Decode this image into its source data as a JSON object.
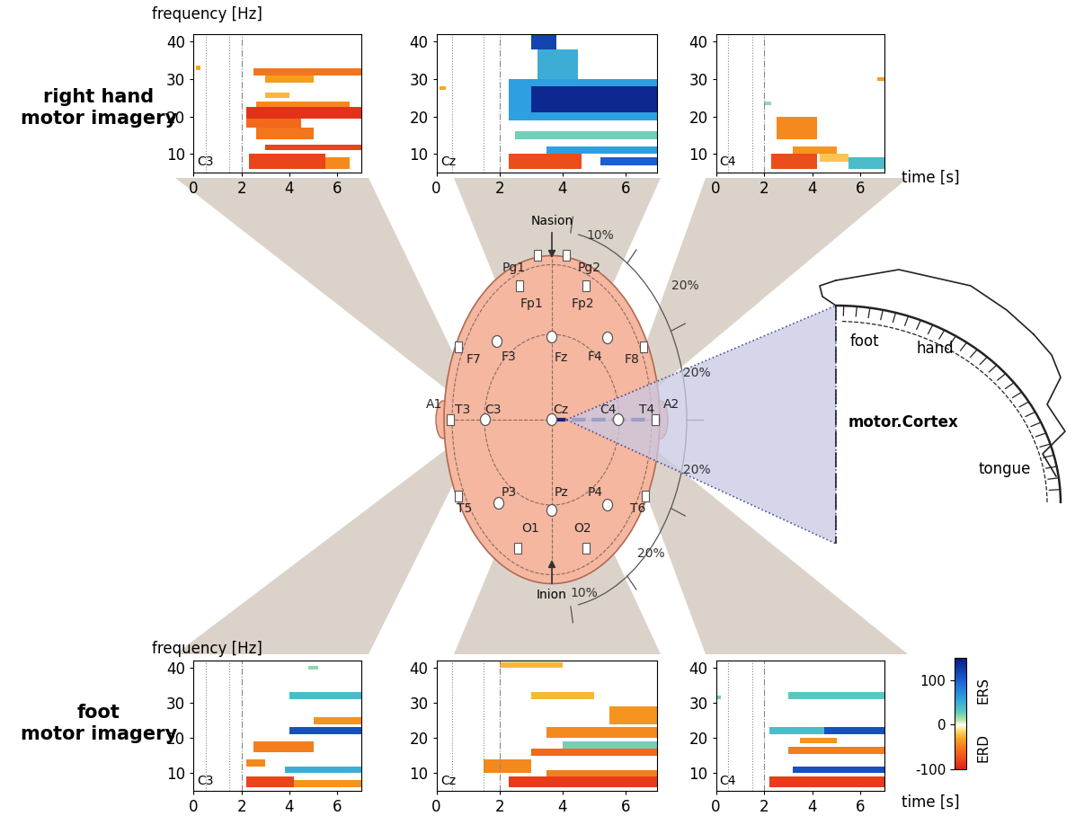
{
  "chart_data": {
    "type": "heatmap",
    "x_label": "time [s]",
    "y_label": "frequency [Hz]",
    "xlim": [
      0,
      7
    ],
    "ylim": [
      5,
      42
    ],
    "xticks": [
      0,
      2,
      4,
      6
    ],
    "yticks": [
      10,
      20,
      30,
      40
    ],
    "event_lines": [
      0.5,
      1.5,
      2
    ],
    "colorbar": {
      "range": [
        -100,
        150
      ],
      "ticks": [
        -100,
        0,
        100
      ],
      "top_label": "ERS",
      "bottom_label": "ERD"
    },
    "rows": [
      {
        "label": "right hand\nmotor imagery",
        "panels": [
          {
            "channel": "C3",
            "cells": [
              {
                "t": [
                  2.2,
                  7
                ],
                "f": [
                  19.5,
                  22.5
                ],
                "value": -90
              },
              {
                "t": [
                  2.2,
                  4.5
                ],
                "f": [
                  17,
                  19.5
                ],
                "value": -60
              },
              {
                "t": [
                  2.6,
                  6.5
                ],
                "f": [
                  22.5,
                  24
                ],
                "value": -45
              },
              {
                "t": [
                  2.6,
                  5.0
                ],
                "f": [
                  14,
                  17
                ],
                "value": -55
              },
              {
                "t": [
                  3,
                  7
                ],
                "f": [
                  11,
                  12.5
                ],
                "value": -80
              },
              {
                "t": [
                  2.3,
                  5.5
                ],
                "f": [
                  6,
                  10
                ],
                "value": -80
              },
              {
                "t": [
                  5.5,
                  6.5
                ],
                "f": [
                  6,
                  9
                ],
                "value": -45
              },
              {
                "t": [
                  2.5,
                  7
                ],
                "f": [
                  31,
                  33
                ],
                "value": -55
              },
              {
                "t": [
                  3,
                  5
                ],
                "f": [
                  29,
                  31
                ],
                "value": -35
              },
              {
                "t": [
                  0.1,
                  0.3
                ],
                "f": [
                  32.5,
                  33.5
                ],
                "value": -30
              },
              {
                "t": [
                  3,
                  4
                ],
                "f": [
                  25,
                  26.5
                ],
                "value": -25
              }
            ]
          },
          {
            "channel": "Cz",
            "cells": [
              {
                "t": [
                  2.3,
                  7
                ],
                "f": [
                  19,
                  30
                ],
                "value": 60
              },
              {
                "t": [
                  3,
                  7
                ],
                "f": [
                  21,
                  28
                ],
                "value": 140
              },
              {
                "t": [
                  3.2,
                  4.5
                ],
                "f": [
                  30,
                  38
                ],
                "value": 50
              },
              {
                "t": [
                  3,
                  3.8
                ],
                "f": [
                  38,
                  42
                ],
                "value": 120
              },
              {
                "t": [
                  2.3,
                  4.6
                ],
                "f": [
                  6,
                  10
                ],
                "value": -75
              },
              {
                "t": [
                  3.5,
                  7
                ],
                "f": [
                  10,
                  12
                ],
                "value": 60
              },
              {
                "t": [
                  5.2,
                  7
                ],
                "f": [
                  7,
                  9
                ],
                "value": 100
              },
              {
                "t": [
                  2.5,
                  7
                ],
                "f": [
                  14,
                  16
                ],
                "value": 25
              },
              {
                "t": [
                  0.1,
                  0.3
                ],
                "f": [
                  27,
                  28
                ],
                "value": -30
              }
            ]
          },
          {
            "channel": "C4",
            "cells": [
              {
                "t": [
                  2.5,
                  4.2
                ],
                "f": [
                  14,
                  20
                ],
                "value": -45
              },
              {
                "t": [
                  2.3,
                  4.2
                ],
                "f": [
                  6,
                  10
                ],
                "value": -75
              },
              {
                "t": [
                  3.2,
                  5
                ],
                "f": [
                  10,
                  12
                ],
                "value": -40
              },
              {
                "t": [
                  4.3,
                  5.5
                ],
                "f": [
                  8,
                  10
                ],
                "value": -20
              },
              {
                "t": [
                  5.5,
                  7
                ],
                "f": [
                  6,
                  9
                ],
                "value": 40
              },
              {
                "t": [
                  2,
                  2.3
                ],
                "f": [
                  23,
                  24
                ],
                "value": 20
              },
              {
                "t": [
                  6.7,
                  7
                ],
                "f": [
                  29.5,
                  30.5
                ],
                "value": -35
              }
            ]
          }
        ]
      },
      {
        "label": "foot\nmotor imagery",
        "panels": [
          {
            "channel": "C3",
            "cells": [
              {
                "t": [
                  2.2,
                  4.2
                ],
                "f": [
                  6,
                  9
                ],
                "value": -80
              },
              {
                "t": [
                  4.2,
                  7
                ],
                "f": [
                  6,
                  8
                ],
                "value": -40
              },
              {
                "t": [
                  3.8,
                  7
                ],
                "f": [
                  10,
                  12
                ],
                "value": 50
              },
              {
                "t": [
                  4,
                  7
                ],
                "f": [
                  21,
                  23
                ],
                "value": 110
              },
              {
                "t": [
                  4,
                  7
                ],
                "f": [
                  31,
                  33
                ],
                "value": 40
              },
              {
                "t": [
                  2.5,
                  5
                ],
                "f": [
                  16,
                  19
                ],
                "value": -50
              },
              {
                "t": [
                  5,
                  7
                ],
                "f": [
                  24,
                  26
                ],
                "value": -40
              },
              {
                "t": [
                  2.2,
                  3
                ],
                "f": [
                  12,
                  14
                ],
                "value": -45
              },
              {
                "t": [
                  4.8,
                  5.2
                ],
                "f": [
                  39.5,
                  40.5
                ],
                "value": 20
              }
            ]
          },
          {
            "channel": "Cz",
            "cells": [
              {
                "t": [
                  2.3,
                  7
                ],
                "f": [
                  6,
                  9
                ],
                "value": -85
              },
              {
                "t": [
                  3.5,
                  7
                ],
                "f": [
                  9,
                  11
                ],
                "value": -50
              },
              {
                "t": [
                  1.5,
                  3
                ],
                "f": [
                  10,
                  14
                ],
                "value": -45
              },
              {
                "t": [
                  3,
                  7
                ],
                "f": [
                  15,
                  17
                ],
                "value": -60
              },
              {
                "t": [
                  4,
                  7
                ],
                "f": [
                  17,
                  19
                ],
                "value": 25
              },
              {
                "t": [
                  3.5,
                  7
                ],
                "f": [
                  20,
                  23
                ],
                "value": -45
              },
              {
                "t": [
                  5.5,
                  7
                ],
                "f": [
                  24,
                  29
                ],
                "value": -40
              },
              {
                "t": [
                  3,
                  5
                ],
                "f": [
                  31,
                  33
                ],
                "value": -25
              },
              {
                "t": [
                  2,
                  4
                ],
                "f": [
                  40,
                  41.5
                ],
                "value": -25
              }
            ]
          },
          {
            "channel": "C4",
            "cells": [
              {
                "t": [
                  2.2,
                  7
                ],
                "f": [
                  6,
                  9
                ],
                "value": -85
              },
              {
                "t": [
                  3.2,
                  7
                ],
                "f": [
                  10,
                  12
                ],
                "value": 110
              },
              {
                "t": [
                  2.2,
                  7
                ],
                "f": [
                  21,
                  23
                ],
                "value": 40
              },
              {
                "t": [
                  4.5,
                  7
                ],
                "f": [
                  21,
                  23
                ],
                "value": 110
              },
              {
                "t": [
                  3,
                  7
                ],
                "f": [
                  15.5,
                  17.5
                ],
                "value": -50
              },
              {
                "t": [
                  3.5,
                  5
                ],
                "f": [
                  18.5,
                  20
                ],
                "value": -40
              },
              {
                "t": [
                  3,
                  7
                ],
                "f": [
                  31,
                  33
                ],
                "value": 30
              },
              {
                "t": [
                  0,
                  0.2
                ],
                "f": [
                  31,
                  32
                ],
                "value": 25
              }
            ]
          }
        ]
      }
    ]
  },
  "diagram": {
    "landmarks": [
      "Nasion",
      "Inion"
    ],
    "electrodes": [
      "Pg1",
      "Pg2",
      "Fp1",
      "Fp2",
      "F7",
      "F3",
      "Fz",
      "F4",
      "F8",
      "A1",
      "T3",
      "C3",
      "Cz",
      "C4",
      "T4",
      "A2",
      "T5",
      "P3",
      "Pz",
      "P4",
      "T6",
      "O1",
      "O2"
    ],
    "spacing_labels": [
      "10%",
      "20%",
      "20%",
      "20%",
      "20%",
      "10%"
    ],
    "cortex": {
      "title": "motor.Cortex",
      "regions": [
        "foot",
        "hand",
        "tongue"
      ]
    }
  }
}
